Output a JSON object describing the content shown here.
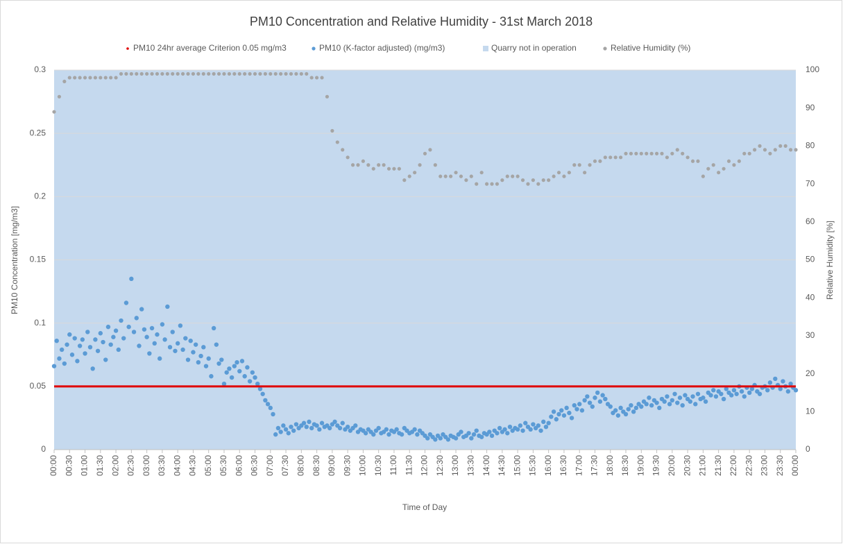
{
  "chart_data": {
    "type": "scatter",
    "title": "PM10 Concentration and Relative Humidity - 31st March 2018",
    "x_label": "Time of Day",
    "y_label": "PM10 Concentration [mg/m3]",
    "y2_label": "Relative Humidity [%]",
    "grid": true,
    "xlim": [
      0,
      1440
    ],
    "xticks": [
      {
        "value": 0,
        "label": "00:00"
      },
      {
        "value": 30,
        "label": "00:30"
      },
      {
        "value": 60,
        "label": "01:00"
      },
      {
        "value": 90,
        "label": "01:30"
      },
      {
        "value": 120,
        "label": "02:00"
      },
      {
        "value": 150,
        "label": "02:30"
      },
      {
        "value": 180,
        "label": "03:00"
      },
      {
        "value": 210,
        "label": "03:30"
      },
      {
        "value": 240,
        "label": "04:00"
      },
      {
        "value": 270,
        "label": "04:30"
      },
      {
        "value": 300,
        "label": "05:00"
      },
      {
        "value": 330,
        "label": "05:30"
      },
      {
        "value": 360,
        "label": "06:00"
      },
      {
        "value": 390,
        "label": "06:30"
      },
      {
        "value": 420,
        "label": "07:00"
      },
      {
        "value": 450,
        "label": "07:30"
      },
      {
        "value": 480,
        "label": "08:00"
      },
      {
        "value": 510,
        "label": "08:30"
      },
      {
        "value": 540,
        "label": "09:00"
      },
      {
        "value": 570,
        "label": "09:30"
      },
      {
        "value": 600,
        "label": "10:00"
      },
      {
        "value": 630,
        "label": "10:30"
      },
      {
        "value": 660,
        "label": "11:00"
      },
      {
        "value": 690,
        "label": "11:30"
      },
      {
        "value": 720,
        "label": "12:00"
      },
      {
        "value": 750,
        "label": "12:30"
      },
      {
        "value": 780,
        "label": "13:00"
      },
      {
        "value": 810,
        "label": "13:30"
      },
      {
        "value": 840,
        "label": "14:00"
      },
      {
        "value": 870,
        "label": "14:30"
      },
      {
        "value": 900,
        "label": "15:00"
      },
      {
        "value": 930,
        "label": "15:30"
      },
      {
        "value": 960,
        "label": "16:00"
      },
      {
        "value": 990,
        "label": "16:30"
      },
      {
        "value": 1020,
        "label": "17:00"
      },
      {
        "value": 1050,
        "label": "17:30"
      },
      {
        "value": 1080,
        "label": "18:00"
      },
      {
        "value": 1110,
        "label": "18:30"
      },
      {
        "value": 1140,
        "label": "19:00"
      },
      {
        "value": 1170,
        "label": "19:30"
      },
      {
        "value": 1200,
        "label": "20:00"
      },
      {
        "value": 1230,
        "label": "20:30"
      },
      {
        "value": 1260,
        "label": "21:00"
      },
      {
        "value": 1290,
        "label": "21:30"
      },
      {
        "value": 1320,
        "label": "22:00"
      },
      {
        "value": 1350,
        "label": "22:30"
      },
      {
        "value": 1380,
        "label": "23:00"
      },
      {
        "value": 1410,
        "label": "23:30"
      },
      {
        "value": 1440,
        "label": "00:00"
      }
    ],
    "ylim": [
      0,
      0.3
    ],
    "yticks": [
      0,
      0.05,
      0.1,
      0.15,
      0.2,
      0.25,
      0.3
    ],
    "y2lim": [
      0,
      100
    ],
    "y2ticks": [
      0,
      10,
      20,
      30,
      40,
      50,
      60,
      70,
      80,
      90,
      100
    ],
    "series": [
      {
        "name": "Quarry not in operation",
        "type": "area",
        "color": "#c5d9ee",
        "x": [
          0,
          1440
        ]
      },
      {
        "name": "PM10 24hr average Criterion 0.05 mg/m3",
        "type": "line",
        "color": "#e00000",
        "x": [
          0,
          1440
        ],
        "values": [
          0.05,
          0.05
        ]
      },
      {
        "name": "PM10 (K-factor adjusted) (mg/m3)",
        "type": "scatter",
        "color": "#5b9bd5",
        "x": [
          0,
          5,
          10,
          15,
          20,
          25,
          30,
          35,
          40,
          45,
          50,
          55,
          60,
          65,
          70,
          75,
          80,
          85,
          90,
          95,
          100,
          105,
          110,
          115,
          120,
          125,
          130,
          135,
          140,
          145,
          150,
          155,
          160,
          165,
          170,
          175,
          180,
          185,
          190,
          195,
          200,
          205,
          210,
          215,
          220,
          225,
          230,
          235,
          240,
          245,
          250,
          255,
          260,
          265,
          270,
          275,
          280,
          285,
          290,
          295,
          300,
          305,
          310,
          315,
          320,
          325,
          330,
          335,
          340,
          345,
          350,
          355,
          360,
          365,
          370,
          375,
          380,
          385,
          390,
          395,
          400,
          405,
          410,
          415,
          420,
          425,
          430,
          435,
          440,
          445,
          450,
          455,
          460,
          465,
          470,
          475,
          480,
          485,
          490,
          495,
          500,
          505,
          510,
          515,
          520,
          525,
          530,
          535,
          540,
          545,
          550,
          555,
          560,
          565,
          570,
          575,
          580,
          585,
          590,
          595,
          600,
          605,
          610,
          615,
          620,
          625,
          630,
          635,
          640,
          645,
          650,
          655,
          660,
          665,
          670,
          675,
          680,
          685,
          690,
          695,
          700,
          705,
          710,
          715,
          720,
          725,
          730,
          735,
          740,
          745,
          750,
          755,
          760,
          765,
          770,
          775,
          780,
          785,
          790,
          795,
          800,
          805,
          810,
          815,
          820,
          825,
          830,
          835,
          840,
          845,
          850,
          855,
          860,
          865,
          870,
          875,
          880,
          885,
          890,
          895,
          900,
          905,
          910,
          915,
          920,
          925,
          930,
          935,
          940,
          945,
          950,
          955,
          960,
          965,
          970,
          975,
          980,
          985,
          990,
          995,
          1000,
          1005,
          1010,
          1015,
          1020,
          1025,
          1030,
          1035,
          1040,
          1045,
          1050,
          1055,
          1060,
          1065,
          1070,
          1075,
          1080,
          1085,
          1090,
          1095,
          1100,
          1105,
          1110,
          1115,
          1120,
          1125,
          1130,
          1135,
          1140,
          1145,
          1150,
          1155,
          1160,
          1165,
          1170,
          1175,
          1180,
          1185,
          1190,
          1195,
          1200,
          1205,
          1210,
          1215,
          1220,
          1225,
          1230,
          1235,
          1240,
          1245,
          1250,
          1255,
          1260,
          1265,
          1270,
          1275,
          1280,
          1285,
          1290,
          1295,
          1300,
          1305,
          1310,
          1315,
          1320,
          1325,
          1330,
          1335,
          1340,
          1345,
          1350,
          1355,
          1360,
          1365,
          1370,
          1375,
          1380,
          1385,
          1390,
          1395,
          1400,
          1405,
          1410,
          1415,
          1420,
          1425,
          1430,
          1435,
          1440
        ],
        "values": [
          0.066,
          0.086,
          0.072,
          0.079,
          0.068,
          0.083,
          0.091,
          0.075,
          0.088,
          0.07,
          0.082,
          0.087,
          0.076,
          0.093,
          0.081,
          0.064,
          0.087,
          0.078,
          0.092,
          0.085,
          0.071,
          0.097,
          0.083,
          0.089,
          0.094,
          0.079,
          0.102,
          0.088,
          0.116,
          0.097,
          0.135,
          0.093,
          0.104,
          0.082,
          0.111,
          0.095,
          0.089,
          0.076,
          0.096,
          0.084,
          0.091,
          0.072,
          0.099,
          0.087,
          0.113,
          0.081,
          0.093,
          0.078,
          0.084,
          0.098,
          0.079,
          0.088,
          0.071,
          0.086,
          0.077,
          0.083,
          0.069,
          0.074,
          0.081,
          0.066,
          0.072,
          0.058,
          0.096,
          0.083,
          0.068,
          0.071,
          0.052,
          0.061,
          0.064,
          0.057,
          0.066,
          0.069,
          0.062,
          0.07,
          0.058,
          0.065,
          0.054,
          0.061,
          0.057,
          0.052,
          0.048,
          0.044,
          0.039,
          0.036,
          0.033,
          0.028,
          0.012,
          0.017,
          0.014,
          0.019,
          0.016,
          0.013,
          0.018,
          0.015,
          0.02,
          0.017,
          0.019,
          0.021,
          0.018,
          0.022,
          0.017,
          0.02,
          0.019,
          0.016,
          0.021,
          0.018,
          0.019,
          0.017,
          0.02,
          0.022,
          0.019,
          0.017,
          0.021,
          0.016,
          0.018,
          0.015,
          0.017,
          0.019,
          0.014,
          0.016,
          0.015,
          0.013,
          0.016,
          0.014,
          0.012,
          0.015,
          0.017,
          0.013,
          0.014,
          0.016,
          0.012,
          0.015,
          0.014,
          0.016,
          0.013,
          0.012,
          0.017,
          0.015,
          0.013,
          0.014,
          0.016,
          0.012,
          0.015,
          0.013,
          0.011,
          0.009,
          0.012,
          0.01,
          0.008,
          0.011,
          0.009,
          0.012,
          0.01,
          0.008,
          0.011,
          0.01,
          0.009,
          0.012,
          0.014,
          0.01,
          0.011,
          0.013,
          0.009,
          0.012,
          0.015,
          0.011,
          0.01,
          0.013,
          0.012,
          0.014,
          0.011,
          0.015,
          0.013,
          0.017,
          0.014,
          0.016,
          0.013,
          0.018,
          0.015,
          0.017,
          0.016,
          0.019,
          0.015,
          0.021,
          0.018,
          0.016,
          0.02,
          0.017,
          0.019,
          0.015,
          0.022,
          0.018,
          0.021,
          0.026,
          0.03,
          0.024,
          0.028,
          0.031,
          0.027,
          0.033,
          0.029,
          0.025,
          0.035,
          0.032,
          0.036,
          0.031,
          0.039,
          0.042,
          0.037,
          0.034,
          0.041,
          0.045,
          0.038,
          0.043,
          0.04,
          0.036,
          0.034,
          0.029,
          0.031,
          0.027,
          0.033,
          0.03,
          0.028,
          0.032,
          0.035,
          0.03,
          0.033,
          0.036,
          0.034,
          0.038,
          0.036,
          0.041,
          0.035,
          0.039,
          0.037,
          0.033,
          0.04,
          0.038,
          0.042,
          0.036,
          0.039,
          0.044,
          0.037,
          0.041,
          0.035,
          0.043,
          0.04,
          0.038,
          0.042,
          0.036,
          0.044,
          0.04,
          0.041,
          0.038,
          0.045,
          0.043,
          0.047,
          0.042,
          0.046,
          0.044,
          0.04,
          0.048,
          0.045,
          0.043,
          0.047,
          0.044,
          0.05,
          0.046,
          0.042,
          0.049,
          0.045,
          0.048,
          0.051,
          0.046,
          0.044,
          0.049,
          0.05,
          0.047,
          0.053,
          0.049,
          0.056,
          0.051,
          0.048,
          0.054,
          0.05,
          0.046,
          0.052,
          0.049,
          0.047
        ]
      },
      {
        "name": "Relative Humidity (%)",
        "type": "scatter",
        "axis": "y2",
        "color": "#a5a5a5",
        "x": [
          0,
          10,
          20,
          30,
          40,
          50,
          60,
          70,
          80,
          90,
          100,
          110,
          120,
          130,
          140,
          150,
          160,
          170,
          180,
          190,
          200,
          210,
          220,
          230,
          240,
          250,
          260,
          270,
          280,
          290,
          300,
          310,
          320,
          330,
          340,
          350,
          360,
          370,
          380,
          390,
          400,
          410,
          420,
          430,
          440,
          450,
          460,
          470,
          480,
          490,
          500,
          510,
          520,
          530,
          540,
          550,
          560,
          570,
          580,
          590,
          600,
          610,
          620,
          630,
          640,
          650,
          660,
          670,
          680,
          690,
          700,
          710,
          720,
          730,
          740,
          750,
          760,
          770,
          780,
          790,
          800,
          810,
          820,
          830,
          840,
          850,
          860,
          870,
          880,
          890,
          900,
          910,
          920,
          930,
          940,
          950,
          960,
          970,
          980,
          990,
          1000,
          1010,
          1020,
          1030,
          1040,
          1050,
          1060,
          1070,
          1080,
          1090,
          1100,
          1110,
          1120,
          1130,
          1140,
          1150,
          1160,
          1170,
          1180,
          1190,
          1200,
          1210,
          1220,
          1230,
          1240,
          1250,
          1260,
          1270,
          1280,
          1290,
          1300,
          1310,
          1320,
          1330,
          1340,
          1350,
          1360,
          1370,
          1380,
          1390,
          1400,
          1410,
          1420,
          1430,
          1440
        ],
        "values": [
          89,
          93,
          97,
          98,
          98,
          98,
          98,
          98,
          98,
          98,
          98,
          98,
          98,
          99,
          99,
          99,
          99,
          99,
          99,
          99,
          99,
          99,
          99,
          99,
          99,
          99,
          99,
          99,
          99,
          99,
          99,
          99,
          99,
          99,
          99,
          99,
          99,
          99,
          99,
          99,
          99,
          99,
          99,
          99,
          99,
          99,
          99,
          99,
          99,
          99,
          98,
          98,
          98,
          93,
          84,
          81,
          79,
          77,
          75,
          75,
          76,
          75,
          74,
          75,
          75,
          74,
          74,
          74,
          71,
          72,
          73,
          75,
          78,
          79,
          75,
          72,
          72,
          72,
          73,
          72,
          71,
          72,
          70,
          73,
          70,
          70,
          70,
          71,
          72,
          72,
          72,
          71,
          70,
          71,
          70,
          71,
          71,
          72,
          73,
          72,
          73,
          75,
          75,
          73,
          75,
          76,
          76,
          77,
          77,
          77,
          77,
          78,
          78,
          78,
          78,
          78,
          78,
          78,
          78,
          77,
          78,
          79,
          78,
          77,
          76,
          76,
          72,
          74,
          75,
          73,
          74,
          76,
          75,
          76,
          78,
          78,
          79,
          80,
          79,
          78,
          79,
          80,
          80,
          79,
          79
        ]
      }
    ]
  }
}
